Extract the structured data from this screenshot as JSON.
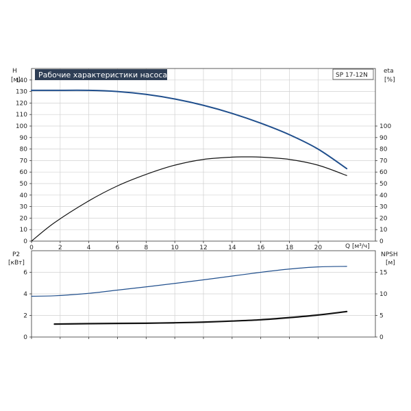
{
  "chart_data": [
    {
      "type": "line",
      "title": "Рабочие характеристики насоса",
      "model_label": "SP 17-12N",
      "xlabel": "Q [м³/ч]",
      "ylabel_left": [
        "H",
        "[м]"
      ],
      "ylabel_right": [
        "eta",
        "[%]"
      ],
      "xlim": [
        0,
        24
      ],
      "ylim_left": [
        0,
        150
      ],
      "ylim_right": [
        0,
        150
      ],
      "x_ticks": [
        0,
        2,
        4,
        6,
        8,
        10,
        12,
        14,
        16,
        18,
        20
      ],
      "y_ticks_left": [
        0,
        10,
        20,
        30,
        40,
        50,
        60,
        70,
        80,
        90,
        100,
        110,
        120,
        130,
        140
      ],
      "y_ticks_right": [
        0,
        10,
        20,
        30,
        40,
        50,
        60,
        70,
        80,
        90,
        100
      ],
      "grid": true,
      "series": [
        {
          "color": "#1f4e8c",
          "axis": "left",
          "x": [
            0,
            1.6,
            4,
            6,
            8,
            10,
            12,
            14,
            16,
            18,
            20,
            22
          ],
          "y": [
            131,
            131,
            131,
            130,
            127.5,
            123.5,
            118,
            111,
            102.5,
            92.5,
            80,
            63
          ]
        },
        {
          "color": "#111111",
          "axis": "right",
          "x": [
            0,
            1.6,
            4,
            6,
            8,
            10,
            12,
            14,
            15,
            16,
            18,
            20,
            22
          ],
          "y": [
            0,
            16,
            35,
            48,
            58,
            66,
            71,
            73,
            73.2,
            73,
            71,
            66,
            57
          ]
        }
      ]
    },
    {
      "type": "line",
      "xlim": [
        0,
        24
      ],
      "ylabel_left": [
        "P2",
        "[кВт]"
      ],
      "ylabel_right": [
        "NPSH",
        "[м]"
      ],
      "ylim_left": [
        0,
        8
      ],
      "ylim_right": [
        0,
        20
      ],
      "y_ticks_left": [
        0,
        2,
        4,
        6
      ],
      "y_ticks_right": [
        0,
        5,
        10,
        15
      ],
      "grid": true,
      "series": [
        {
          "color": "#1f4e8c",
          "axis": "left",
          "x": [
            0,
            1.6,
            4,
            6,
            8,
            10,
            12,
            14,
            16,
            18,
            20,
            22
          ],
          "y": [
            3.78,
            3.82,
            4.05,
            4.35,
            4.65,
            4.97,
            5.3,
            5.65,
            6.0,
            6.3,
            6.5,
            6.55
          ]
        },
        {
          "color": "#111111",
          "axis": "right",
          "x": [
            1.6,
            4,
            6,
            8,
            10,
            12,
            14,
            16,
            18,
            20,
            22
          ],
          "y": [
            3.0,
            3.1,
            3.15,
            3.2,
            3.3,
            3.45,
            3.7,
            4.0,
            4.5,
            5.1,
            5.9
          ]
        }
      ]
    }
  ]
}
